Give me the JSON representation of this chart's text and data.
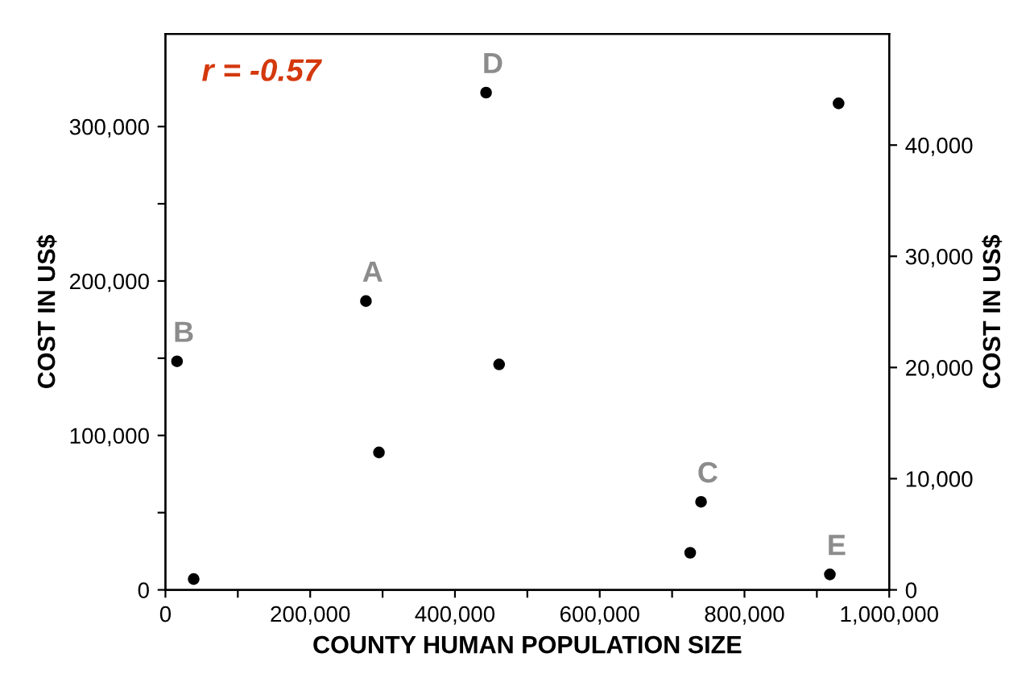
{
  "chart_data": {
    "type": "scatter",
    "xlabel": "COUNTY HUMAN POPULATION SIZE",
    "ylabel": "COST IN US$",
    "y2label": "COST IN US$",
    "x": [
      39000,
      16000,
      277000,
      295000,
      443000,
      461000,
      725000,
      740000,
      918000,
      930000
    ],
    "series": [
      {
        "color": "#000000",
        "values": [
          7000,
          148000,
          187000,
          89000,
          322000,
          146000,
          24000,
          57000,
          10000,
          315000
        ]
      }
    ],
    "marker": "circle",
    "grid": false,
    "xlim": [
      0,
      1000000
    ],
    "xticks": [
      0,
      {
        "value": 100000,
        "label": null
      },
      {
        "value": 200000,
        "label": "200,000"
      },
      {
        "value": 300000,
        "label": null
      },
      {
        "value": 400000,
        "label": "400,000"
      },
      {
        "value": 500000,
        "label": null
      },
      {
        "value": 600000,
        "label": "600,000"
      },
      {
        "value": 700000,
        "label": null
      },
      {
        "value": 800000,
        "label": "800,000"
      },
      {
        "value": 900000,
        "label": null
      },
      {
        "value": 1000000,
        "label": "1,000,000"
      }
    ],
    "ylim": [
      0,
      360000
    ],
    "yticks": [
      0,
      {
        "value": 50000,
        "label": null
      },
      {
        "value": 100000,
        "label": "100,000"
      },
      {
        "value": 150000,
        "label": null
      },
      {
        "value": 200000,
        "label": "200,000"
      },
      {
        "value": 250000,
        "label": null
      },
      {
        "value": 300000,
        "label": "300,000"
      }
    ],
    "y2lim": [
      0,
      50000
    ],
    "y2ticks": [
      0,
      {
        "value": 10000,
        "label": "10,000"
      },
      {
        "value": 20000,
        "label": "20,000"
      },
      {
        "value": 30000,
        "label": "30,000"
      },
      {
        "value": 40000,
        "label": "40,000"
      }
    ],
    "annotations": [
      "r = -0.57",
      {
        "text": "A",
        "x": 277000,
        "y": 187000
      },
      {
        "text": "B",
        "x": 16000,
        "y": 148000
      },
      {
        "text": "C",
        "x": 740000,
        "y": 57000
      },
      {
        "text": "D",
        "x": 443000,
        "y": 322000
      },
      {
        "text": "E",
        "x": 918000,
        "y": 10000
      }
    ]
  }
}
